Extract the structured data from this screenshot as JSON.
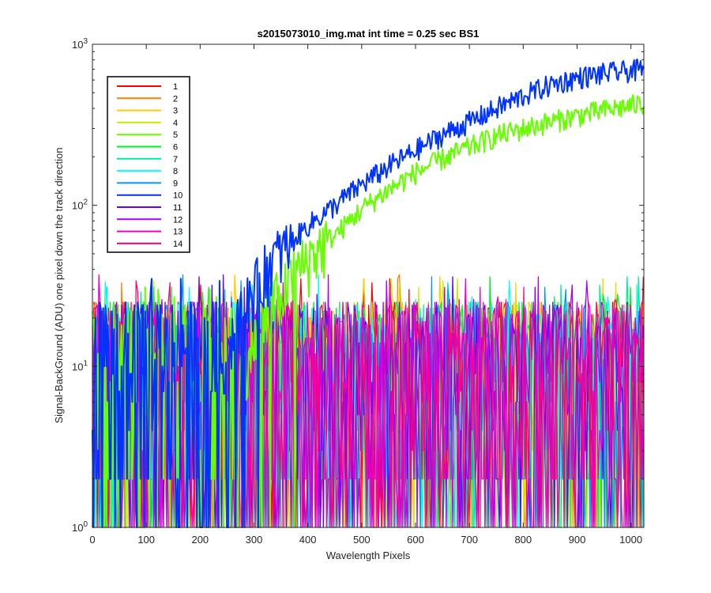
{
  "chart_data": {
    "type": "line",
    "title": "s2015073010_img.mat int time = 0.25 sec   BS1",
    "xlabel": "Wavelength Pixels",
    "ylabel": "Signal-BackGround (ADU) one pixel down the track direction",
    "xlim": [
      0,
      1024
    ],
    "ylim": [
      1,
      1000
    ],
    "yscale": "log",
    "grid": false,
    "legend_position": "top-left",
    "x_ticks": [
      "0",
      "100",
      "200",
      "300",
      "400",
      "500",
      "600",
      "700",
      "800",
      "900",
      "1000"
    ],
    "y_ticks": [
      {
        "base": "10",
        "exp": "0"
      },
      {
        "base": "10",
        "exp": "1"
      },
      {
        "base": "10",
        "exp": "2"
      },
      {
        "base": "10",
        "exp": "3"
      }
    ],
    "noise_floor": {
      "low": 1,
      "typical_high": 25,
      "max": 38
    },
    "series": [
      {
        "name": "1",
        "color": "#ff0000",
        "kind": "noise"
      },
      {
        "name": "2",
        "color": "#ff7f00",
        "kind": "noise"
      },
      {
        "name": "3",
        "color": "#ffcc00",
        "kind": "noise"
      },
      {
        "name": "4",
        "color": "#ccee00",
        "kind": "noise"
      },
      {
        "name": "5",
        "color": "#66ff00",
        "kind": "signal",
        "x": [
          270,
          300,
          340,
          380,
          420,
          460,
          500,
          550,
          600,
          650,
          700,
          750,
          800,
          850,
          900,
          950,
          1024
        ],
        "values": [
          8,
          15,
          26,
          40,
          55,
          70,
          95,
          125,
          160,
          195,
          230,
          270,
          300,
          330,
          360,
          390,
          430
        ]
      },
      {
        "name": "6",
        "color": "#00ee33",
        "kind": "noise"
      },
      {
        "name": "7",
        "color": "#00ee99",
        "kind": "noise"
      },
      {
        "name": "8",
        "color": "#00ffff",
        "kind": "noise"
      },
      {
        "name": "9",
        "color": "#0099ee",
        "kind": "noise"
      },
      {
        "name": "10",
        "color": "#0033ff",
        "kind": "signal",
        "x": [
          240,
          270,
          300,
          330,
          360,
          400,
          450,
          500,
          550,
          600,
          650,
          700,
          750,
          800,
          850,
          900,
          950,
          1024
        ],
        "values": [
          10,
          20,
          30,
          45,
          55,
          75,
          100,
          135,
          175,
          220,
          275,
          330,
          400,
          480,
          560,
          620,
          660,
          700
        ]
      },
      {
        "name": "11",
        "color": "#6600ee",
        "kind": "noise"
      },
      {
        "name": "12",
        "color": "#aa00ff",
        "kind": "noise"
      },
      {
        "name": "13",
        "color": "#ee00cc",
        "kind": "noise"
      },
      {
        "name": "14",
        "color": "#ff0077",
        "kind": "noise"
      }
    ]
  }
}
